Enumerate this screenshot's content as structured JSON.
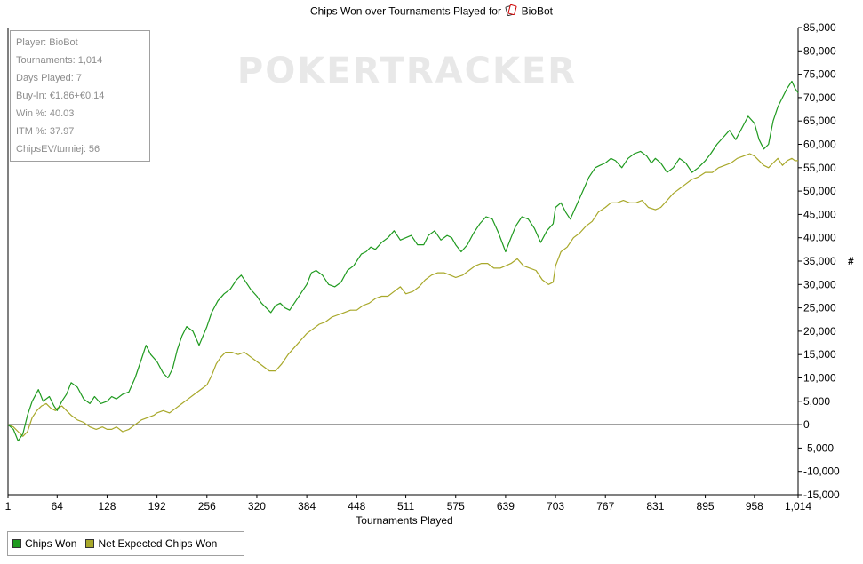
{
  "title": {
    "prefix": "Chips Won over Tournaments Played for",
    "player": "BioBot",
    "icon": "cards-icon"
  },
  "watermark": "POKERTRACKER",
  "stats": [
    "Player: BioBot",
    "Tournaments: 1,014",
    "Days Played: 7",
    "Buy-In: €1.86+€0.14",
    "Win %: 40.03",
    "ITM %: 37.97",
    "ChipsEV/turniej: 56"
  ],
  "legend": {
    "items": [
      {
        "label": "Chips Won",
        "color": "#1f9a1f"
      },
      {
        "label": "Net Expected Chips Won",
        "color": "#a8a82a"
      }
    ]
  },
  "chart_data": {
    "type": "line",
    "title": "Chips Won over Tournaments Played for BioBot",
    "xlabel": "Tournaments Played",
    "ylabel": "#",
    "xlim": [
      1,
      1014
    ],
    "ylim": [
      -15000,
      85000
    ],
    "x_ticks": [
      "1",
      "64",
      "128",
      "192",
      "256",
      "320",
      "384",
      "448",
      "511",
      "575",
      "639",
      "703",
      "767",
      "831",
      "895",
      "958",
      "1,014"
    ],
    "y_ticks": [
      "85,000",
      "80,000",
      "75,000",
      "70,000",
      "65,000",
      "60,000",
      "55,000",
      "50,000",
      "45,000",
      "40,000",
      "35,000",
      "30,000",
      "25,000",
      "20,000",
      "15,000",
      "10,000",
      "5,000",
      "0",
      "-5,000",
      "-10,000",
      "-15,000"
    ],
    "y_tick_values": [
      85000,
      80000,
      75000,
      70000,
      65000,
      60000,
      55000,
      50000,
      45000,
      40000,
      35000,
      30000,
      25000,
      20000,
      15000,
      10000,
      5000,
      0,
      -5000,
      -10000,
      -15000
    ],
    "grid": false,
    "zero_line": true,
    "legend_position": "bottom-left",
    "series": [
      {
        "name": "Chips Won",
        "color": "#1f9a1f",
        "x": [
          1,
          8,
          14,
          20,
          26,
          32,
          40,
          46,
          54,
          60,
          64,
          70,
          76,
          82,
          90,
          98,
          106,
          112,
          120,
          128,
          134,
          140,
          148,
          156,
          164,
          172,
          178,
          184,
          192,
          200,
          206,
          212,
          218,
          224,
          230,
          238,
          246,
          256,
          262,
          270,
          278,
          286,
          294,
          300,
          306,
          312,
          320,
          326,
          332,
          338,
          344,
          350,
          356,
          362,
          368,
          376,
          384,
          390,
          396,
          404,
          412,
          420,
          428,
          436,
          444,
          448,
          454,
          460,
          466,
          472,
          480,
          488,
          496,
          504,
          511,
          518,
          526,
          534,
          540,
          548,
          556,
          564,
          570,
          575,
          582,
          590,
          598,
          606,
          614,
          622,
          630,
          639,
          646,
          652,
          660,
          668,
          676,
          684,
          692,
          700,
          703,
          710,
          716,
          722,
          730,
          738,
          746,
          754,
          760,
          767,
          774,
          780,
          788,
          796,
          804,
          812,
          820,
          826,
          831,
          838,
          846,
          854,
          862,
          870,
          878,
          886,
          895,
          902,
          910,
          918,
          926,
          934,
          942,
          950,
          958,
          964,
          970,
          976,
          982,
          988,
          994,
          1000,
          1006,
          1010,
          1014
        ],
        "y": [
          0,
          -1000,
          -3500,
          -2000,
          2000,
          5000,
          7500,
          5000,
          6000,
          4000,
          3000,
          5000,
          6500,
          9000,
          8000,
          5500,
          4500,
          6000,
          4500,
          5000,
          6000,
          5500,
          6500,
          7000,
          10000,
          14000,
          17000,
          15000,
          13500,
          11000,
          10000,
          12000,
          16000,
          19000,
          21000,
          20000,
          17000,
          21000,
          24000,
          26500,
          28000,
          29000,
          31000,
          32000,
          30500,
          29000,
          27500,
          26000,
          25000,
          24000,
          25500,
          26000,
          25000,
          24500,
          26000,
          28000,
          30000,
          32500,
          33000,
          32000,
          30000,
          29500,
          30500,
          33000,
          34000,
          35000,
          36500,
          37000,
          38000,
          37500,
          39000,
          40000,
          41500,
          39500,
          40000,
          40500,
          38500,
          38500,
          40500,
          41500,
          39500,
          40500,
          40000,
          38500,
          37000,
          38500,
          41000,
          43000,
          44500,
          44000,
          41000,
          37000,
          40000,
          42500,
          44500,
          44000,
          42000,
          39000,
          41500,
          43000,
          46500,
          47500,
          45500,
          44000,
          47000,
          50000,
          53000,
          55000,
          55500,
          56000,
          57000,
          56500,
          55000,
          57000,
          58000,
          58500,
          57500,
          56000,
          57000,
          56000,
          54000,
          55000,
          57000,
          56000,
          54000,
          55000,
          56500,
          58000,
          60000,
          61500,
          63000,
          61000,
          63500,
          66000,
          64500,
          61000,
          59000,
          60000,
          65000,
          68000,
          70000,
          72000,
          73500,
          72000,
          71000
        ]
      },
      {
        "name": "Net Expected Chips Won",
        "color": "#a8a82a",
        "x": [
          1,
          8,
          14,
          20,
          26,
          32,
          38,
          44,
          50,
          56,
          62,
          64,
          70,
          76,
          82,
          90,
          98,
          106,
          114,
          122,
          128,
          134,
          140,
          148,
          156,
          164,
          172,
          180,
          188,
          192,
          200,
          208,
          216,
          224,
          232,
          240,
          248,
          256,
          262,
          268,
          274,
          280,
          288,
          296,
          304,
          312,
          320,
          328,
          336,
          344,
          352,
          360,
          368,
          376,
          384,
          392,
          400,
          408,
          416,
          424,
          432,
          440,
          448,
          456,
          464,
          472,
          480,
          488,
          496,
          504,
          511,
          520,
          528,
          536,
          544,
          552,
          560,
          568,
          575,
          584,
          592,
          600,
          608,
          616,
          624,
          632,
          639,
          646,
          654,
          662,
          670,
          678,
          686,
          694,
          700,
          703,
          710,
          718,
          726,
          734,
          742,
          750,
          758,
          767,
          774,
          782,
          790,
          798,
          806,
          814,
          822,
          831,
          838,
          846,
          854,
          862,
          870,
          878,
          886,
          895,
          904,
          912,
          920,
          928,
          936,
          944,
          952,
          958,
          964,
          970,
          976,
          982,
          988,
          994,
          1000,
          1006,
          1010,
          1014
        ],
        "y": [
          0,
          -500,
          -1500,
          -2500,
          -1500,
          1500,
          3000,
          4000,
          4500,
          3500,
          3000,
          3500,
          4000,
          3000,
          2000,
          1000,
          500,
          -500,
          -1000,
          -500,
          -1000,
          -1000,
          -500,
          -1500,
          -1000,
          0,
          1000,
          1500,
          2000,
          2500,
          3000,
          2500,
          3500,
          4500,
          5500,
          6500,
          7500,
          8500,
          10500,
          13000,
          14500,
          15500,
          15500,
          15000,
          15500,
          14500,
          13500,
          12500,
          11500,
          11500,
          13000,
          15000,
          16500,
          18000,
          19500,
          20500,
          21500,
          22000,
          23000,
          23500,
          24000,
          24500,
          24500,
          25500,
          26000,
          27000,
          27500,
          27500,
          28500,
          29500,
          28000,
          28500,
          29500,
          31000,
          32000,
          32500,
          32500,
          32000,
          31500,
          32000,
          33000,
          34000,
          34500,
          34500,
          33500,
          33500,
          34000,
          34500,
          35500,
          34000,
          33500,
          33000,
          31000,
          30000,
          30500,
          34000,
          37000,
          38000,
          40000,
          41000,
          42500,
          43500,
          45500,
          46500,
          47500,
          47500,
          48000,
          47500,
          47500,
          48000,
          46500,
          46000,
          46500,
          48000,
          49500,
          50500,
          51500,
          52500,
          53000,
          54000,
          54000,
          55000,
          55500,
          56000,
          57000,
          57500,
          58000,
          57500,
          56500,
          55500,
          55000,
          56000,
          57000,
          55500,
          56500,
          57000,
          56500,
          56500
        ]
      }
    ]
  }
}
